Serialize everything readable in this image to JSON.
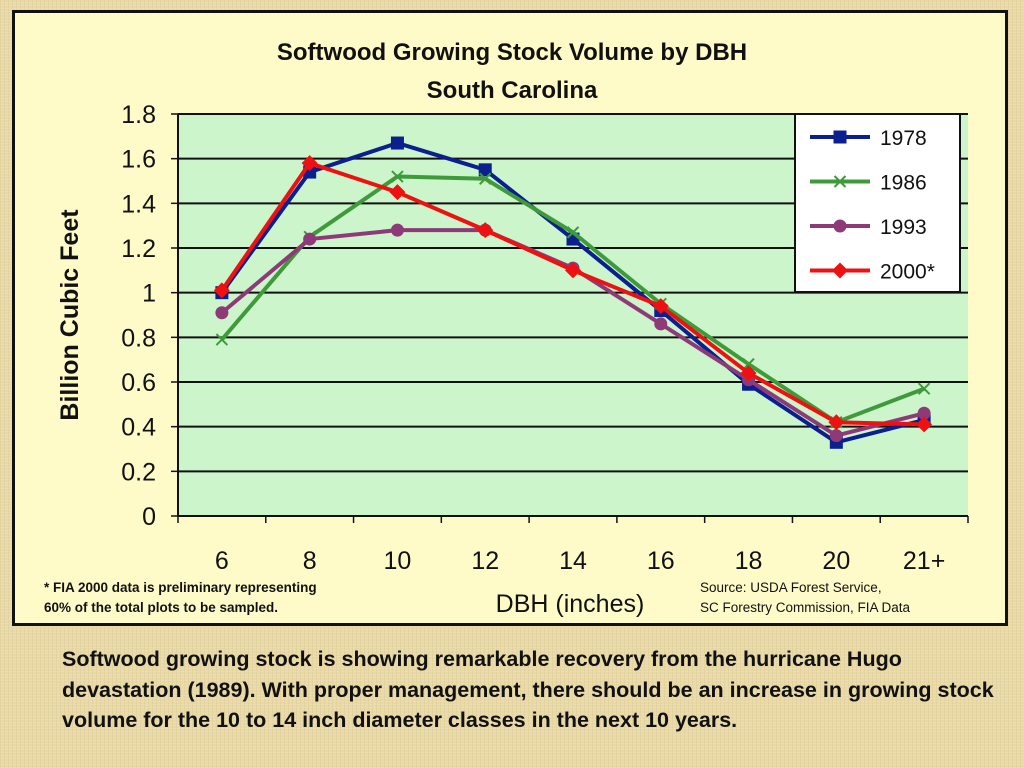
{
  "chart_data": {
    "type": "line",
    "title": "Softwood Growing Stock Volume by DBH",
    "subtitle": "South Carolina",
    "xlabel": "DBH (inches)",
    "ylabel": "Billion Cubic Feet",
    "categories": [
      "6",
      "8",
      "10",
      "12",
      "14",
      "16",
      "18",
      "20",
      "21+"
    ],
    "ylim": [
      0,
      1.8
    ],
    "yticks": [
      "0",
      "0.2",
      "0.4",
      "0.6",
      "0.8",
      "1",
      "1.2",
      "1.4",
      "1.6",
      "1.8"
    ],
    "grid": true,
    "legend_position": "top-right",
    "series": [
      {
        "name": "1978",
        "color": "#0b1f8f",
        "marker": "square",
        "values": [
          1.0,
          1.54,
          1.67,
          1.55,
          1.24,
          0.92,
          0.59,
          0.33,
          0.43
        ]
      },
      {
        "name": "1986",
        "color": "#3f9a3a",
        "marker": "x",
        "values": [
          0.79,
          1.25,
          1.52,
          1.51,
          1.27,
          0.95,
          0.68,
          0.42,
          0.57
        ]
      },
      {
        "name": "1993",
        "color": "#8e3a78",
        "marker": "circle",
        "values": [
          0.91,
          1.24,
          1.28,
          1.28,
          1.11,
          0.86,
          0.61,
          0.36,
          0.46
        ]
      },
      {
        "name": "2000*",
        "color": "#ee1111",
        "marker": "diamond",
        "values": [
          1.01,
          1.58,
          1.45,
          1.28,
          1.1,
          0.94,
          0.64,
          0.42,
          0.41
        ]
      }
    ]
  },
  "colors": {
    "plot_background": "#ccf5cc",
    "panel_background": "#fffbc8",
    "slide_background": "#e9d9a6"
  },
  "footnote": {
    "lines": [
      "*  FIA 2000 data is preliminary representing",
      "60% of the total  plots to be sampled."
    ]
  },
  "source": {
    "lines": [
      "Source: USDA Forest Service,",
      "SC Forestry Commission, FIA Data"
    ]
  },
  "body_text": "Softwood growing stock is showing remarkable recovery from the hurricane Hugo devastation (1989).  With proper management, there should be an increase in growing stock volume for the 10 to 14 inch diameter classes in the next 10 years."
}
